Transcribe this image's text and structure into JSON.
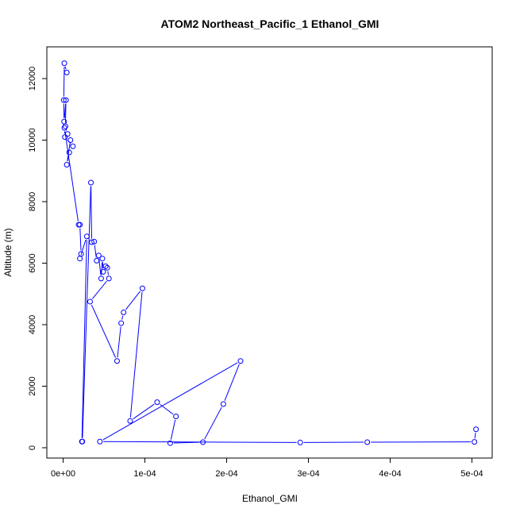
{
  "chart_data": {
    "type": "line",
    "title": "ATOM2 Northeast_Pacific_1 Ethanol_GMI",
    "xlabel": "Ethanol_GMI",
    "ylabel": "Altitude (m)",
    "xlim": [
      0,
      0.000505
    ],
    "ylim": [
      0,
      12500
    ],
    "xticks": [
      0,
      0.0001,
      0.0002,
      0.0003,
      0.0004,
      0.0005
    ],
    "xtick_labels": [
      "0e+00",
      "1e-04",
      "2e-04",
      "3e-04",
      "4e-04",
      "5e-04"
    ],
    "yticks": [
      0,
      2000,
      4000,
      6000,
      8000,
      10000,
      12000
    ],
    "ytick_labels": [
      "0",
      "2000",
      "4000",
      "6000",
      "8000",
      "10000",
      "12000"
    ],
    "grid": false,
    "legend": "none",
    "series": [
      {
        "color": "#0000ff",
        "marker": "open-circle",
        "x": [
          4.5e-06,
          1.5e-06,
          8e-07,
          1.2e-06,
          3.5e-06,
          2.8e-06,
          5.5e-06,
          9e-06,
          4.5e-06,
          7.5e-06,
          1.2e-05,
          2.2e-06,
          1.6e-06,
          1.9e-05,
          2.05e-05,
          2.2e-05,
          2.05e-05,
          2.9e-05,
          2.3e-05,
          2.35e-05,
          3.4e-05,
          3.5e-05,
          3.8e-05,
          4.1e-05,
          4.35e-05,
          4.65e-05,
          4.8e-05,
          4.9e-05,
          5.2e-05,
          5.4e-05,
          5.6e-05,
          3.3e-05,
          6.6e-05,
          7.1e-05,
          7.4e-05,
          9.7e-05,
          8.2e-05,
          0.000115,
          0.000138,
          0.000131,
          0.000171,
          0.000196,
          0.000217,
          4.5e-05,
          0.00029,
          0.000372,
          0.000503,
          0.000505
        ],
        "y": [
          12200,
          12500,
          11300,
          10600,
          11300,
          10450,
          10200,
          10000,
          9200,
          9600,
          9800,
          10100,
          10400,
          7250,
          7250,
          6300,
          6150,
          6870,
          200,
          200,
          8620,
          6680,
          6700,
          6080,
          6250,
          5500,
          6150,
          5720,
          5900,
          5850,
          5500,
          4750,
          2820,
          4050,
          4400,
          5180,
          870,
          1480,
          1020,
          150,
          180,
          1420,
          2820,
          200,
          170,
          180,
          190,
          600
        ]
      }
    ]
  }
}
